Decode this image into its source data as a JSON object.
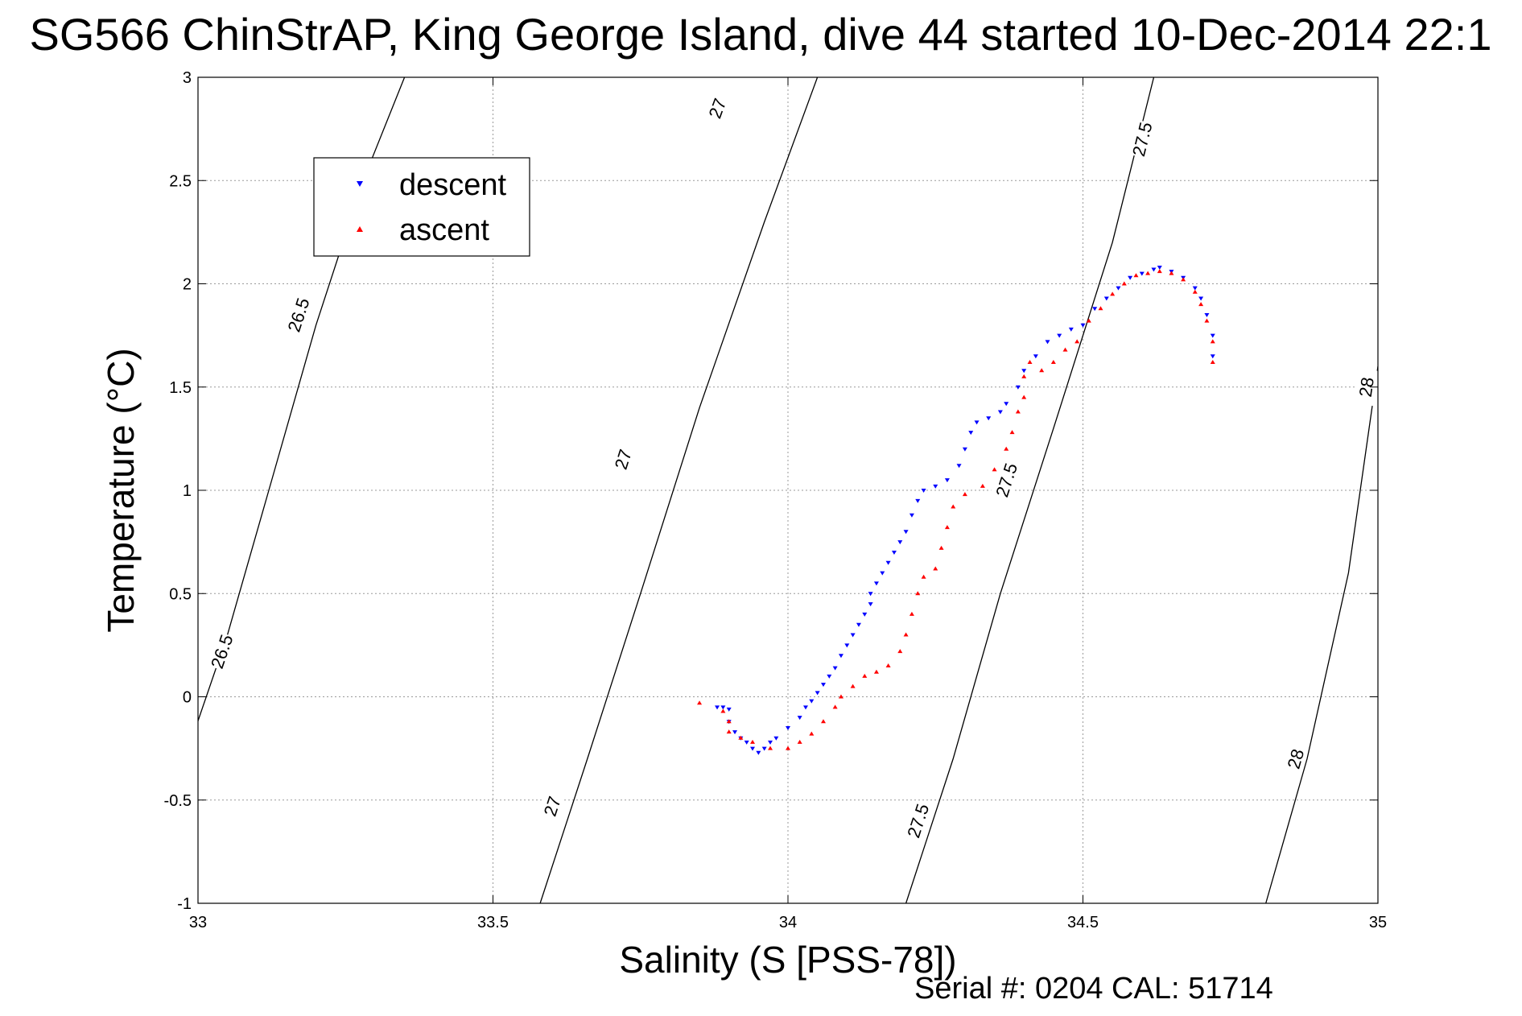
{
  "chart_data": {
    "type": "scatter",
    "title": "SG566 ChinStrAP, King George Island, dive 44 started 10-Dec-2014 22:1",
    "xlabel": "Salinity (S [PSS-78])",
    "ylabel": "Temperature (°C)",
    "xlim": [
      33,
      35
    ],
    "ylim": [
      -1,
      3
    ],
    "x_ticks": [
      33,
      33.5,
      34,
      34.5,
      35
    ],
    "x_tick_labels": [
      "33",
      "33.5",
      "34",
      "34.5",
      "35"
    ],
    "y_ticks": [
      -1,
      -0.5,
      0,
      0.5,
      1,
      1.5,
      2,
      2.5,
      3
    ],
    "y_tick_labels": [
      "-1",
      "-0.5",
      "0",
      "0.5",
      "1",
      "1.5",
      "2",
      "2.5",
      "3"
    ],
    "grid": true,
    "legend_position": "top-left",
    "footer": "Serial #: 0204  CAL: 51714",
    "series": [
      {
        "name": "descent",
        "color": "#0000ff",
        "marker": "triangle-down",
        "points": [
          [
            33.88,
            -0.05
          ],
          [
            33.89,
            -0.05
          ],
          [
            33.9,
            -0.06
          ],
          [
            33.9,
            -0.12
          ],
          [
            33.91,
            -0.17
          ],
          [
            33.92,
            -0.2
          ],
          [
            33.93,
            -0.22
          ],
          [
            33.94,
            -0.25
          ],
          [
            33.95,
            -0.27
          ],
          [
            33.96,
            -0.25
          ],
          [
            33.97,
            -0.22
          ],
          [
            33.98,
            -0.2
          ],
          [
            34.0,
            -0.15
          ],
          [
            34.02,
            -0.1
          ],
          [
            34.03,
            -0.05
          ],
          [
            34.04,
            -0.02
          ],
          [
            34.05,
            0.02
          ],
          [
            34.06,
            0.06
          ],
          [
            34.07,
            0.1
          ],
          [
            34.08,
            0.14
          ],
          [
            34.09,
            0.2
          ],
          [
            34.1,
            0.25
          ],
          [
            34.11,
            0.3
          ],
          [
            34.12,
            0.35
          ],
          [
            34.13,
            0.4
          ],
          [
            34.14,
            0.45
          ],
          [
            34.14,
            0.5
          ],
          [
            34.15,
            0.55
          ],
          [
            34.16,
            0.6
          ],
          [
            34.17,
            0.65
          ],
          [
            34.18,
            0.7
          ],
          [
            34.19,
            0.75
          ],
          [
            34.2,
            0.8
          ],
          [
            34.21,
            0.88
          ],
          [
            34.22,
            0.95
          ],
          [
            34.23,
            1.0
          ],
          [
            34.25,
            1.02
          ],
          [
            34.27,
            1.05
          ],
          [
            34.29,
            1.12
          ],
          [
            34.3,
            1.2
          ],
          [
            34.31,
            1.28
          ],
          [
            34.32,
            1.33
          ],
          [
            34.34,
            1.35
          ],
          [
            34.36,
            1.38
          ],
          [
            34.37,
            1.42
          ],
          [
            34.39,
            1.5
          ],
          [
            34.4,
            1.58
          ],
          [
            34.42,
            1.65
          ],
          [
            34.44,
            1.72
          ],
          [
            34.46,
            1.75
          ],
          [
            34.48,
            1.78
          ],
          [
            34.5,
            1.8
          ],
          [
            34.52,
            1.88
          ],
          [
            34.54,
            1.93
          ],
          [
            34.56,
            1.98
          ],
          [
            34.58,
            2.03
          ],
          [
            34.6,
            2.05
          ],
          [
            34.62,
            2.07
          ],
          [
            34.63,
            2.08
          ],
          [
            34.65,
            2.06
          ],
          [
            34.67,
            2.03
          ],
          [
            34.69,
            1.98
          ],
          [
            34.7,
            1.93
          ],
          [
            34.71,
            1.85
          ],
          [
            34.72,
            1.75
          ],
          [
            34.72,
            1.65
          ]
        ]
      },
      {
        "name": "ascent",
        "color": "#ff0000",
        "marker": "triangle-up",
        "points": [
          [
            33.85,
            -0.03
          ],
          [
            33.89,
            -0.07
          ],
          [
            33.9,
            -0.12
          ],
          [
            33.9,
            -0.17
          ],
          [
            33.92,
            -0.2
          ],
          [
            33.94,
            -0.22
          ],
          [
            33.97,
            -0.25
          ],
          [
            34.0,
            -0.25
          ],
          [
            34.02,
            -0.22
          ],
          [
            34.04,
            -0.18
          ],
          [
            34.06,
            -0.12
          ],
          [
            34.08,
            -0.05
          ],
          [
            34.09,
            0.0
          ],
          [
            34.11,
            0.05
          ],
          [
            34.13,
            0.1
          ],
          [
            34.15,
            0.12
          ],
          [
            34.17,
            0.15
          ],
          [
            34.19,
            0.22
          ],
          [
            34.2,
            0.3
          ],
          [
            34.21,
            0.4
          ],
          [
            34.22,
            0.5
          ],
          [
            34.23,
            0.58
          ],
          [
            34.25,
            0.62
          ],
          [
            34.26,
            0.72
          ],
          [
            34.27,
            0.82
          ],
          [
            34.28,
            0.92
          ],
          [
            34.3,
            0.98
          ],
          [
            34.33,
            1.02
          ],
          [
            34.35,
            1.1
          ],
          [
            34.37,
            1.2
          ],
          [
            34.38,
            1.28
          ],
          [
            34.39,
            1.38
          ],
          [
            34.4,
            1.45
          ],
          [
            34.4,
            1.55
          ],
          [
            34.41,
            1.62
          ],
          [
            34.43,
            1.58
          ],
          [
            34.45,
            1.62
          ],
          [
            34.47,
            1.68
          ],
          [
            34.49,
            1.72
          ],
          [
            34.51,
            1.82
          ],
          [
            34.53,
            1.88
          ],
          [
            34.55,
            1.95
          ],
          [
            34.57,
            2.0
          ],
          [
            34.59,
            2.04
          ],
          [
            34.61,
            2.05
          ],
          [
            34.63,
            2.06
          ],
          [
            34.65,
            2.05
          ],
          [
            34.67,
            2.02
          ],
          [
            34.69,
            1.96
          ],
          [
            34.7,
            1.9
          ],
          [
            34.71,
            1.82
          ],
          [
            34.72,
            1.72
          ],
          [
            34.72,
            1.62
          ]
        ]
      }
    ],
    "density_contours": [
      {
        "label": "26.5",
        "path": [
          [
            32.99,
            -0.2
          ],
          [
            33.05,
            0.3
          ],
          [
            33.12,
            1.0
          ],
          [
            33.2,
            1.8
          ],
          [
            33.28,
            2.5
          ],
          [
            33.35,
            3.0
          ]
        ],
        "label_positions": [
          [
            33.04,
            0.22
          ],
          [
            33.17,
            1.85
          ]
        ]
      },
      {
        "label": "27",
        "path": [
          [
            33.58,
            -1.0
          ],
          [
            33.66,
            -0.3
          ],
          [
            33.75,
            0.5
          ],
          [
            33.85,
            1.4
          ],
          [
            33.96,
            2.3
          ],
          [
            34.05,
            3.0
          ]
        ],
        "label_positions": [
          [
            33.6,
            -0.53
          ],
          [
            33.72,
            1.15
          ],
          [
            33.88,
            2.85
          ]
        ]
      },
      {
        "label": "27.5",
        "path": [
          [
            34.2,
            -1.0
          ],
          [
            34.28,
            -0.3
          ],
          [
            34.36,
            0.5
          ],
          [
            34.45,
            1.3
          ],
          [
            34.55,
            2.2
          ],
          [
            34.62,
            3.0
          ]
        ],
        "label_positions": [
          [
            34.22,
            -0.6
          ],
          [
            34.37,
            1.05
          ],
          [
            34.6,
            2.7
          ]
        ]
      },
      {
        "label": "28",
        "path": [
          [
            34.81,
            -1.0
          ],
          [
            34.88,
            -0.3
          ],
          [
            34.95,
            0.6
          ],
          [
            35.0,
            1.6
          ]
        ],
        "label_positions": [
          [
            34.86,
            -0.3
          ],
          [
            34.98,
            1.5
          ]
        ]
      }
    ]
  }
}
